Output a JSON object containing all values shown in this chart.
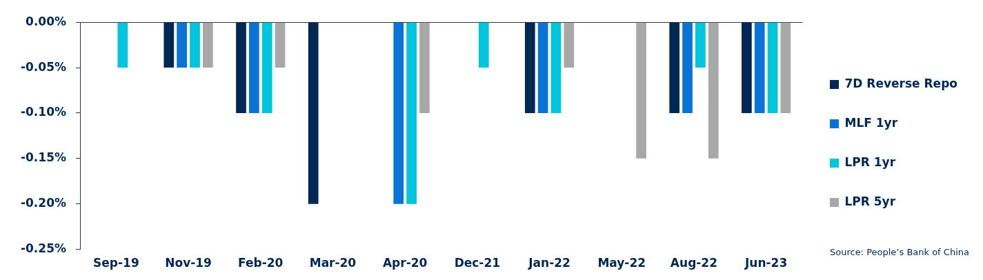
{
  "chart_data": {
    "type": "bar",
    "categories": [
      "Sep-19",
      "Nov-19",
      "Feb-20",
      "Mar-20",
      "Apr-20",
      "Dec-21",
      "Jan-22",
      "May-22",
      "Aug-22",
      "Jun-23"
    ],
    "series": [
      {
        "name": "7D Reverse Repo",
        "color": "#002855",
        "values": [
          null,
          -0.05,
          -0.1,
          -0.2,
          null,
          null,
          -0.1,
          null,
          -0.1,
          -0.1
        ]
      },
      {
        "name": "MLF 1yr",
        "color": "#0a74d6",
        "values": [
          null,
          -0.05,
          -0.1,
          null,
          -0.2,
          null,
          -0.1,
          null,
          -0.1,
          -0.1
        ]
      },
      {
        "name": "LPR 1yr",
        "color": "#00c5dc",
        "values": [
          -0.05,
          -0.05,
          -0.1,
          null,
          -0.2,
          -0.05,
          -0.1,
          null,
          -0.05,
          -0.1
        ]
      },
      {
        "name": "LPR 5yr",
        "color": "#a8a8a8",
        "values": [
          null,
          -0.05,
          -0.05,
          null,
          -0.1,
          null,
          -0.05,
          -0.15,
          -0.15,
          -0.1
        ]
      }
    ],
    "ylim": [
      -0.25,
      0
    ],
    "yticks": [
      {
        "value": 0,
        "label": "0.00%"
      },
      {
        "value": -0.05,
        "label": "-0.05%"
      },
      {
        "value": -0.1,
        "label": "-0.10%"
      },
      {
        "value": -0.15,
        "label": "-0.15%"
      },
      {
        "value": -0.2,
        "label": "-0.20%"
      },
      {
        "value": -0.25,
        "label": "-0.25%"
      }
    ],
    "grid": false,
    "legend": "right",
    "annotations": [
      "Source: People’s Bank of China"
    ]
  }
}
